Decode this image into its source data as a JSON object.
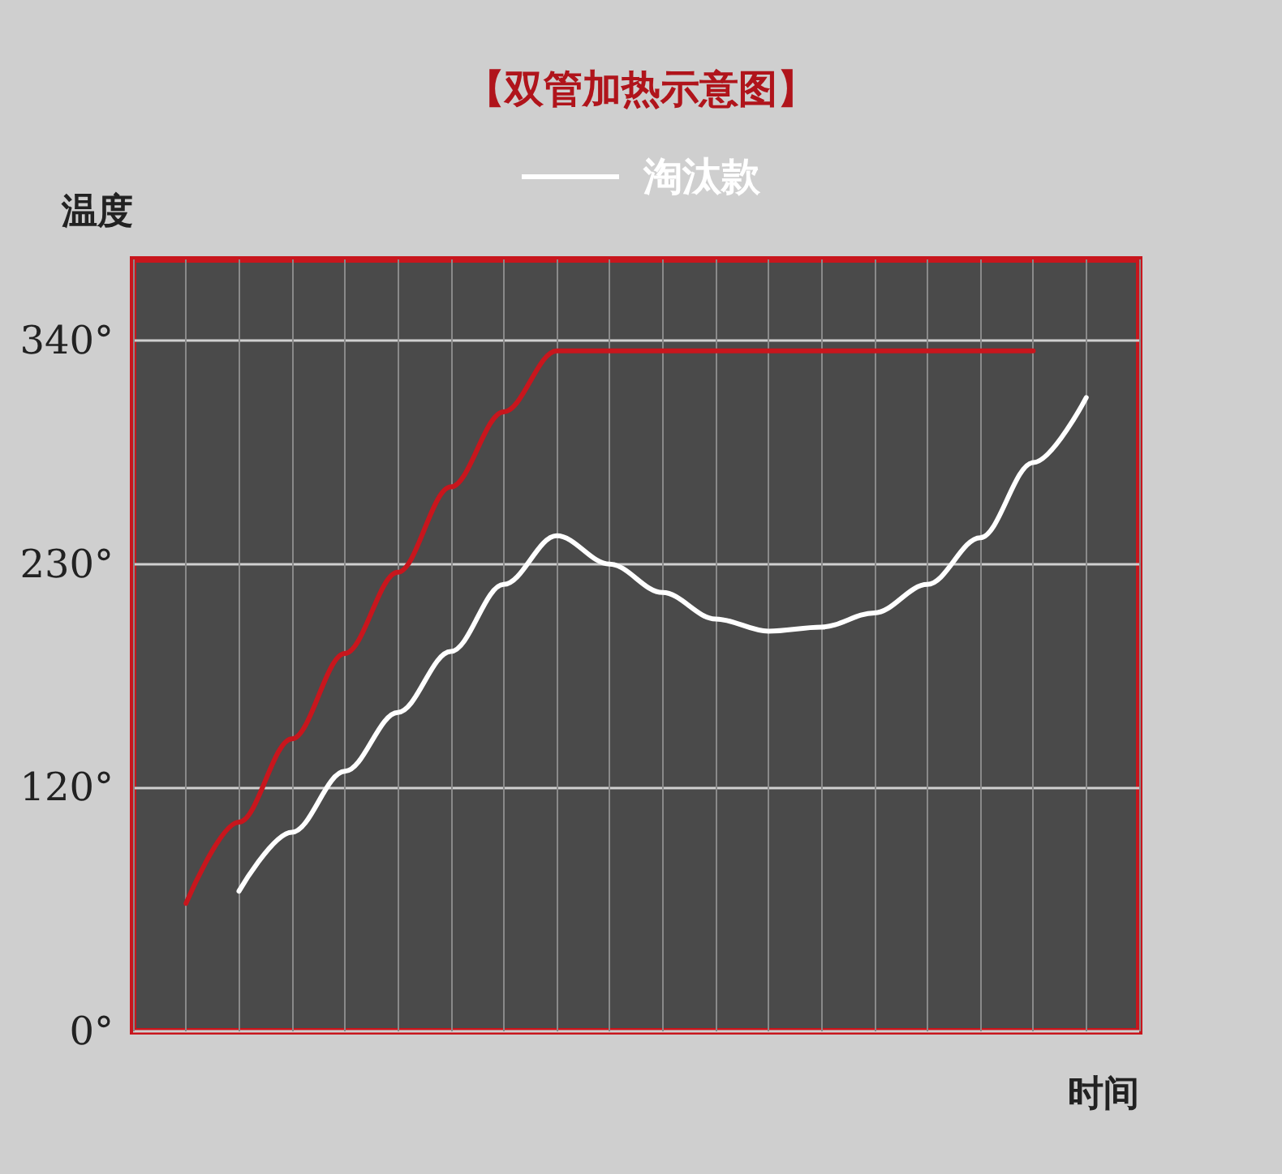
{
  "chart_data": {
    "type": "line",
    "title": "【双管加热示意图】",
    "xlabel": "时间",
    "ylabel": "温度",
    "categories": [
      null,
      null,
      null,
      null,
      null,
      null,
      null,
      null,
      null,
      null,
      null,
      null,
      null,
      null,
      null,
      null,
      null,
      null,
      null,
      null
    ],
    "series": [
      {
        "color": "#c8161d",
        "values": [
          null,
          63,
          103,
          144,
          186,
          226,
          268,
          305,
          335,
          335,
          335,
          335,
          335,
          335,
          335,
          335,
          335,
          335,
          null,
          null
        ]
      },
      {
        "name": "淘汰款",
        "color": "#ffffff",
        "values": [
          null,
          null,
          69,
          98,
          128,
          157,
          187,
          220,
          244,
          230,
          216,
          203,
          197,
          199,
          206,
          220,
          243,
          280,
          312,
          null
        ]
      }
    ],
    "ylim": [
      0,
      380
    ],
    "yticks": [
      {
        "value": 0,
        "label": "0°"
      },
      {
        "value": 120,
        "label": "120°"
      },
      {
        "value": 230,
        "label": "230°"
      },
      {
        "value": 340,
        "label": "340°"
      }
    ],
    "grid": true,
    "legend": "top",
    "marker": "none",
    "line_style": "solid",
    "tick_labels": "y"
  }
}
